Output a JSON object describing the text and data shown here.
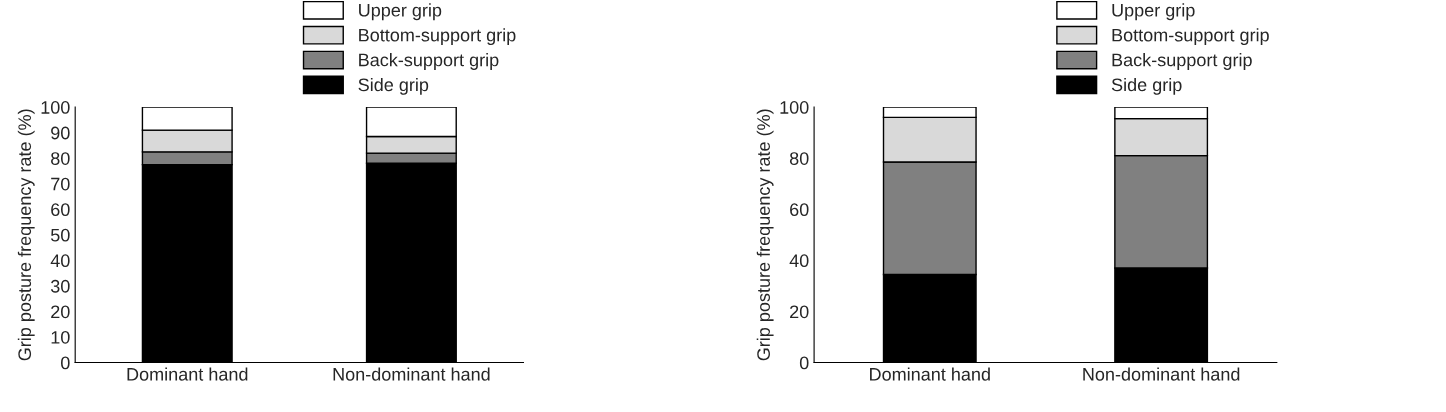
{
  "chart_data": [
    {
      "type": "bar",
      "stacked": true,
      "ylabel": "Grip posture frequency rate (%)",
      "categories": [
        "Dominant hand",
        "Non-dominant hand"
      ],
      "ylim": [
        0,
        100
      ],
      "yticks": [
        0,
        10,
        20,
        30,
        40,
        50,
        60,
        70,
        80,
        90,
        100
      ],
      "legend": "top right",
      "grid": false,
      "series": [
        {
          "name": "Side grip",
          "color": "#000000",
          "values": [
            77.5,
            78
          ]
        },
        {
          "name": "Back-support grip",
          "color": "#808080",
          "values": [
            5,
            4
          ]
        },
        {
          "name": "Bottom-support grip",
          "color": "#d9d9d9",
          "values": [
            8.5,
            6.5
          ]
        },
        {
          "name": "Upper grip",
          "color": "#ffffff",
          "values": [
            9,
            11.5
          ]
        }
      ]
    },
    {
      "type": "bar",
      "stacked": true,
      "ylabel": "Grip posture frequency rate (%)",
      "categories": [
        "Dominant hand",
        "Non-dominant hand"
      ],
      "ylim": [
        0,
        100
      ],
      "yticks": [
        0,
        20,
        40,
        60,
        80,
        100
      ],
      "legend": "top right",
      "grid": false,
      "series": [
        {
          "name": "Side grip",
          "color": "#000000",
          "values": [
            34.5,
            37
          ]
        },
        {
          "name": "Back-support grip",
          "color": "#808080",
          "values": [
            44,
            44
          ]
        },
        {
          "name": "Bottom-support grip",
          "color": "#d9d9d9",
          "values": [
            17.5,
            14.5
          ]
        },
        {
          "name": "Upper grip",
          "color": "#ffffff",
          "values": [
            4,
            4.5
          ]
        }
      ]
    }
  ]
}
